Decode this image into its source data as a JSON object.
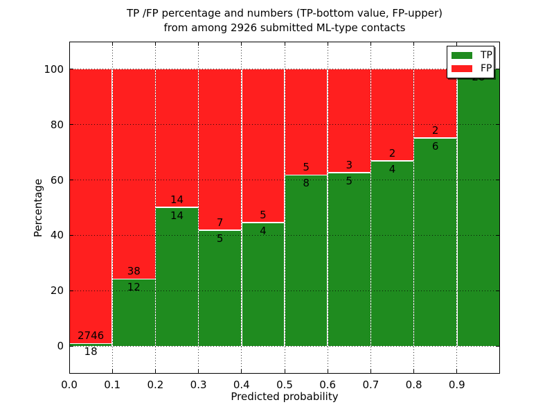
{
  "figure": {
    "title_line1": "TP /FP percentage and numbers (TP-bottom value, FP-upper)",
    "title_line2": "from among 2926 submitted ML-type contacts"
  },
  "chart_data": {
    "type": "bar",
    "stacked": true,
    "orientation": "vertical",
    "title": "TP /FP percentage and numbers (TP-bottom value, FP-upper) from among 2926 submitted ML-type contacts",
    "total_contacts": 2926,
    "xlabel": "Predicted probability",
    "ylabel": "Percentage",
    "xlim": [
      0.0,
      1.0
    ],
    "ylim": [
      -10,
      110
    ],
    "grid": {
      "style": "dotted",
      "color": "#000000"
    },
    "x_tick_labels": [
      "0.0",
      "0.1",
      "0.2",
      "0.3",
      "0.4",
      "0.5",
      "0.6",
      "0.7",
      "0.8",
      "0.9"
    ],
    "y_tick_values": [
      0,
      20,
      40,
      60,
      80,
      100
    ],
    "colors": {
      "tp": "#1f8b1f",
      "fp": "#ff1f1f"
    },
    "bins": [
      {
        "range": "0.0-0.1",
        "tp": 18,
        "fp": 2746,
        "tp_pct": 0.65
      },
      {
        "range": "0.1-0.2",
        "tp": 12,
        "fp": 38,
        "tp_pct": 24.0
      },
      {
        "range": "0.2-0.3",
        "tp": 14,
        "fp": 14,
        "tp_pct": 50.0
      },
      {
        "range": "0.3-0.4",
        "tp": 5,
        "fp": 7,
        "tp_pct": 41.67
      },
      {
        "range": "0.4-0.5",
        "tp": 4,
        "fp": 5,
        "tp_pct": 44.44
      },
      {
        "range": "0.5-0.6",
        "tp": 8,
        "fp": 5,
        "tp_pct": 61.54
      },
      {
        "range": "0.6-0.7",
        "tp": 5,
        "fp": 3,
        "tp_pct": 62.5
      },
      {
        "range": "0.7-0.8",
        "tp": 4,
        "fp": 2,
        "tp_pct": 66.67
      },
      {
        "range": "0.8-0.9",
        "tp": 6,
        "fp": 2,
        "tp_pct": 75.0
      },
      {
        "range": "0.9-1.0",
        "tp": 28,
        "fp": 0,
        "tp_pct": 100.0
      }
    ],
    "legend": {
      "position": "upper right",
      "entries": [
        {
          "label": "TP",
          "color": "#1f8b1f"
        },
        {
          "label": "FP",
          "color": "#ff1f1f"
        }
      ]
    }
  }
}
